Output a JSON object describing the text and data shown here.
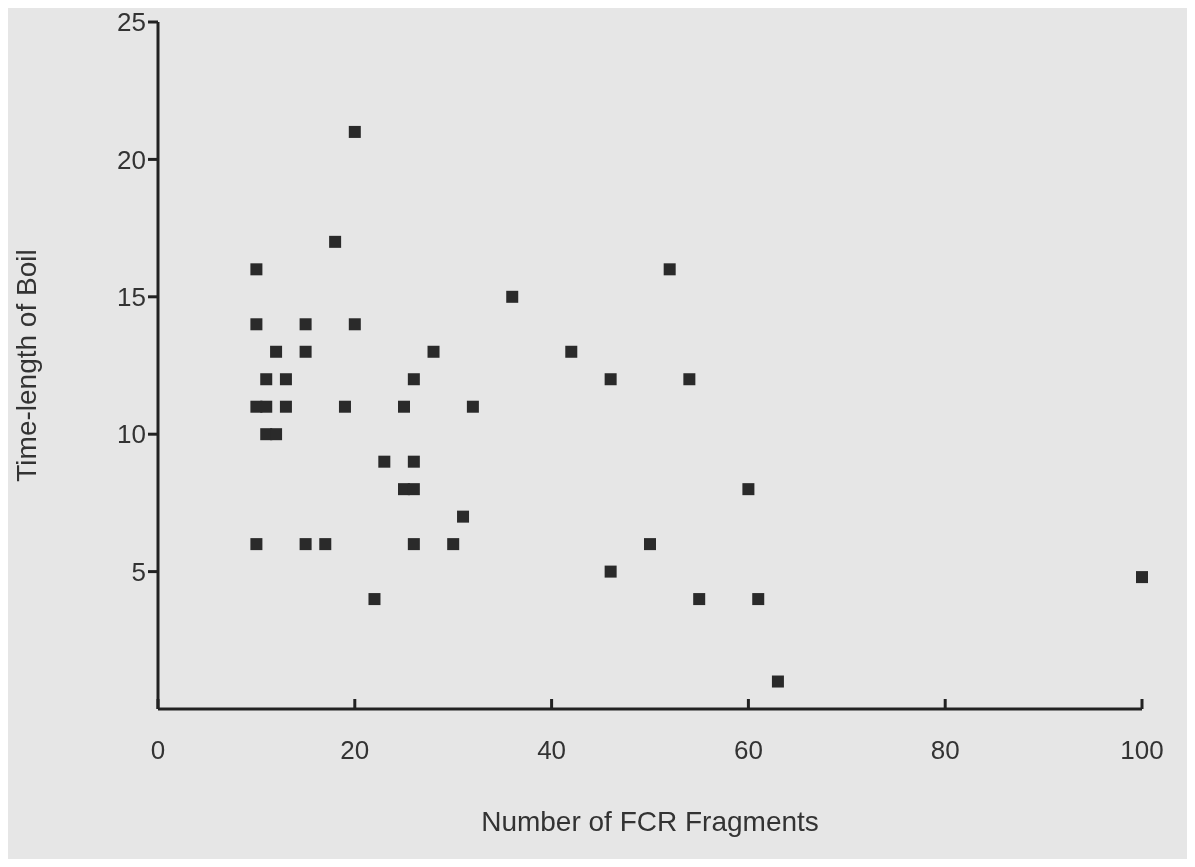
{
  "chart_data": {
    "type": "scatter",
    "xlabel": "Number of FCR Fragments",
    "ylabel": "Time-length of Boil",
    "marker": "square",
    "grid": false,
    "series": [
      {
        "color": "#2a2a2a",
        "x": [
          10,
          10,
          10,
          10,
          11,
          11,
          11,
          12,
          12,
          13,
          13,
          15,
          15,
          15,
          17,
          18,
          19,
          20,
          20,
          22,
          23,
          25,
          25,
          26,
          26,
          26,
          26,
          28,
          30,
          31,
          32,
          36,
          42,
          46,
          46,
          50,
          52,
          54,
          55,
          60,
          61,
          63,
          100
        ],
        "values": [
          16,
          14,
          11,
          6,
          11,
          12,
          10,
          10,
          13,
          12,
          11,
          14,
          13,
          6,
          6,
          17,
          11,
          21,
          14,
          4,
          9,
          11,
          8,
          8,
          12,
          9,
          6,
          13,
          6,
          7,
          11,
          15,
          13,
          12,
          5,
          6,
          16,
          12,
          4,
          8,
          4,
          1,
          4.8
        ]
      }
    ],
    "xlim": [
      0,
      100
    ],
    "xticks": [
      0,
      20,
      40,
      60,
      80,
      100
    ],
    "ylim": [
      0,
      25
    ],
    "yticks": [
      5,
      10,
      15,
      20,
      25
    ]
  }
}
